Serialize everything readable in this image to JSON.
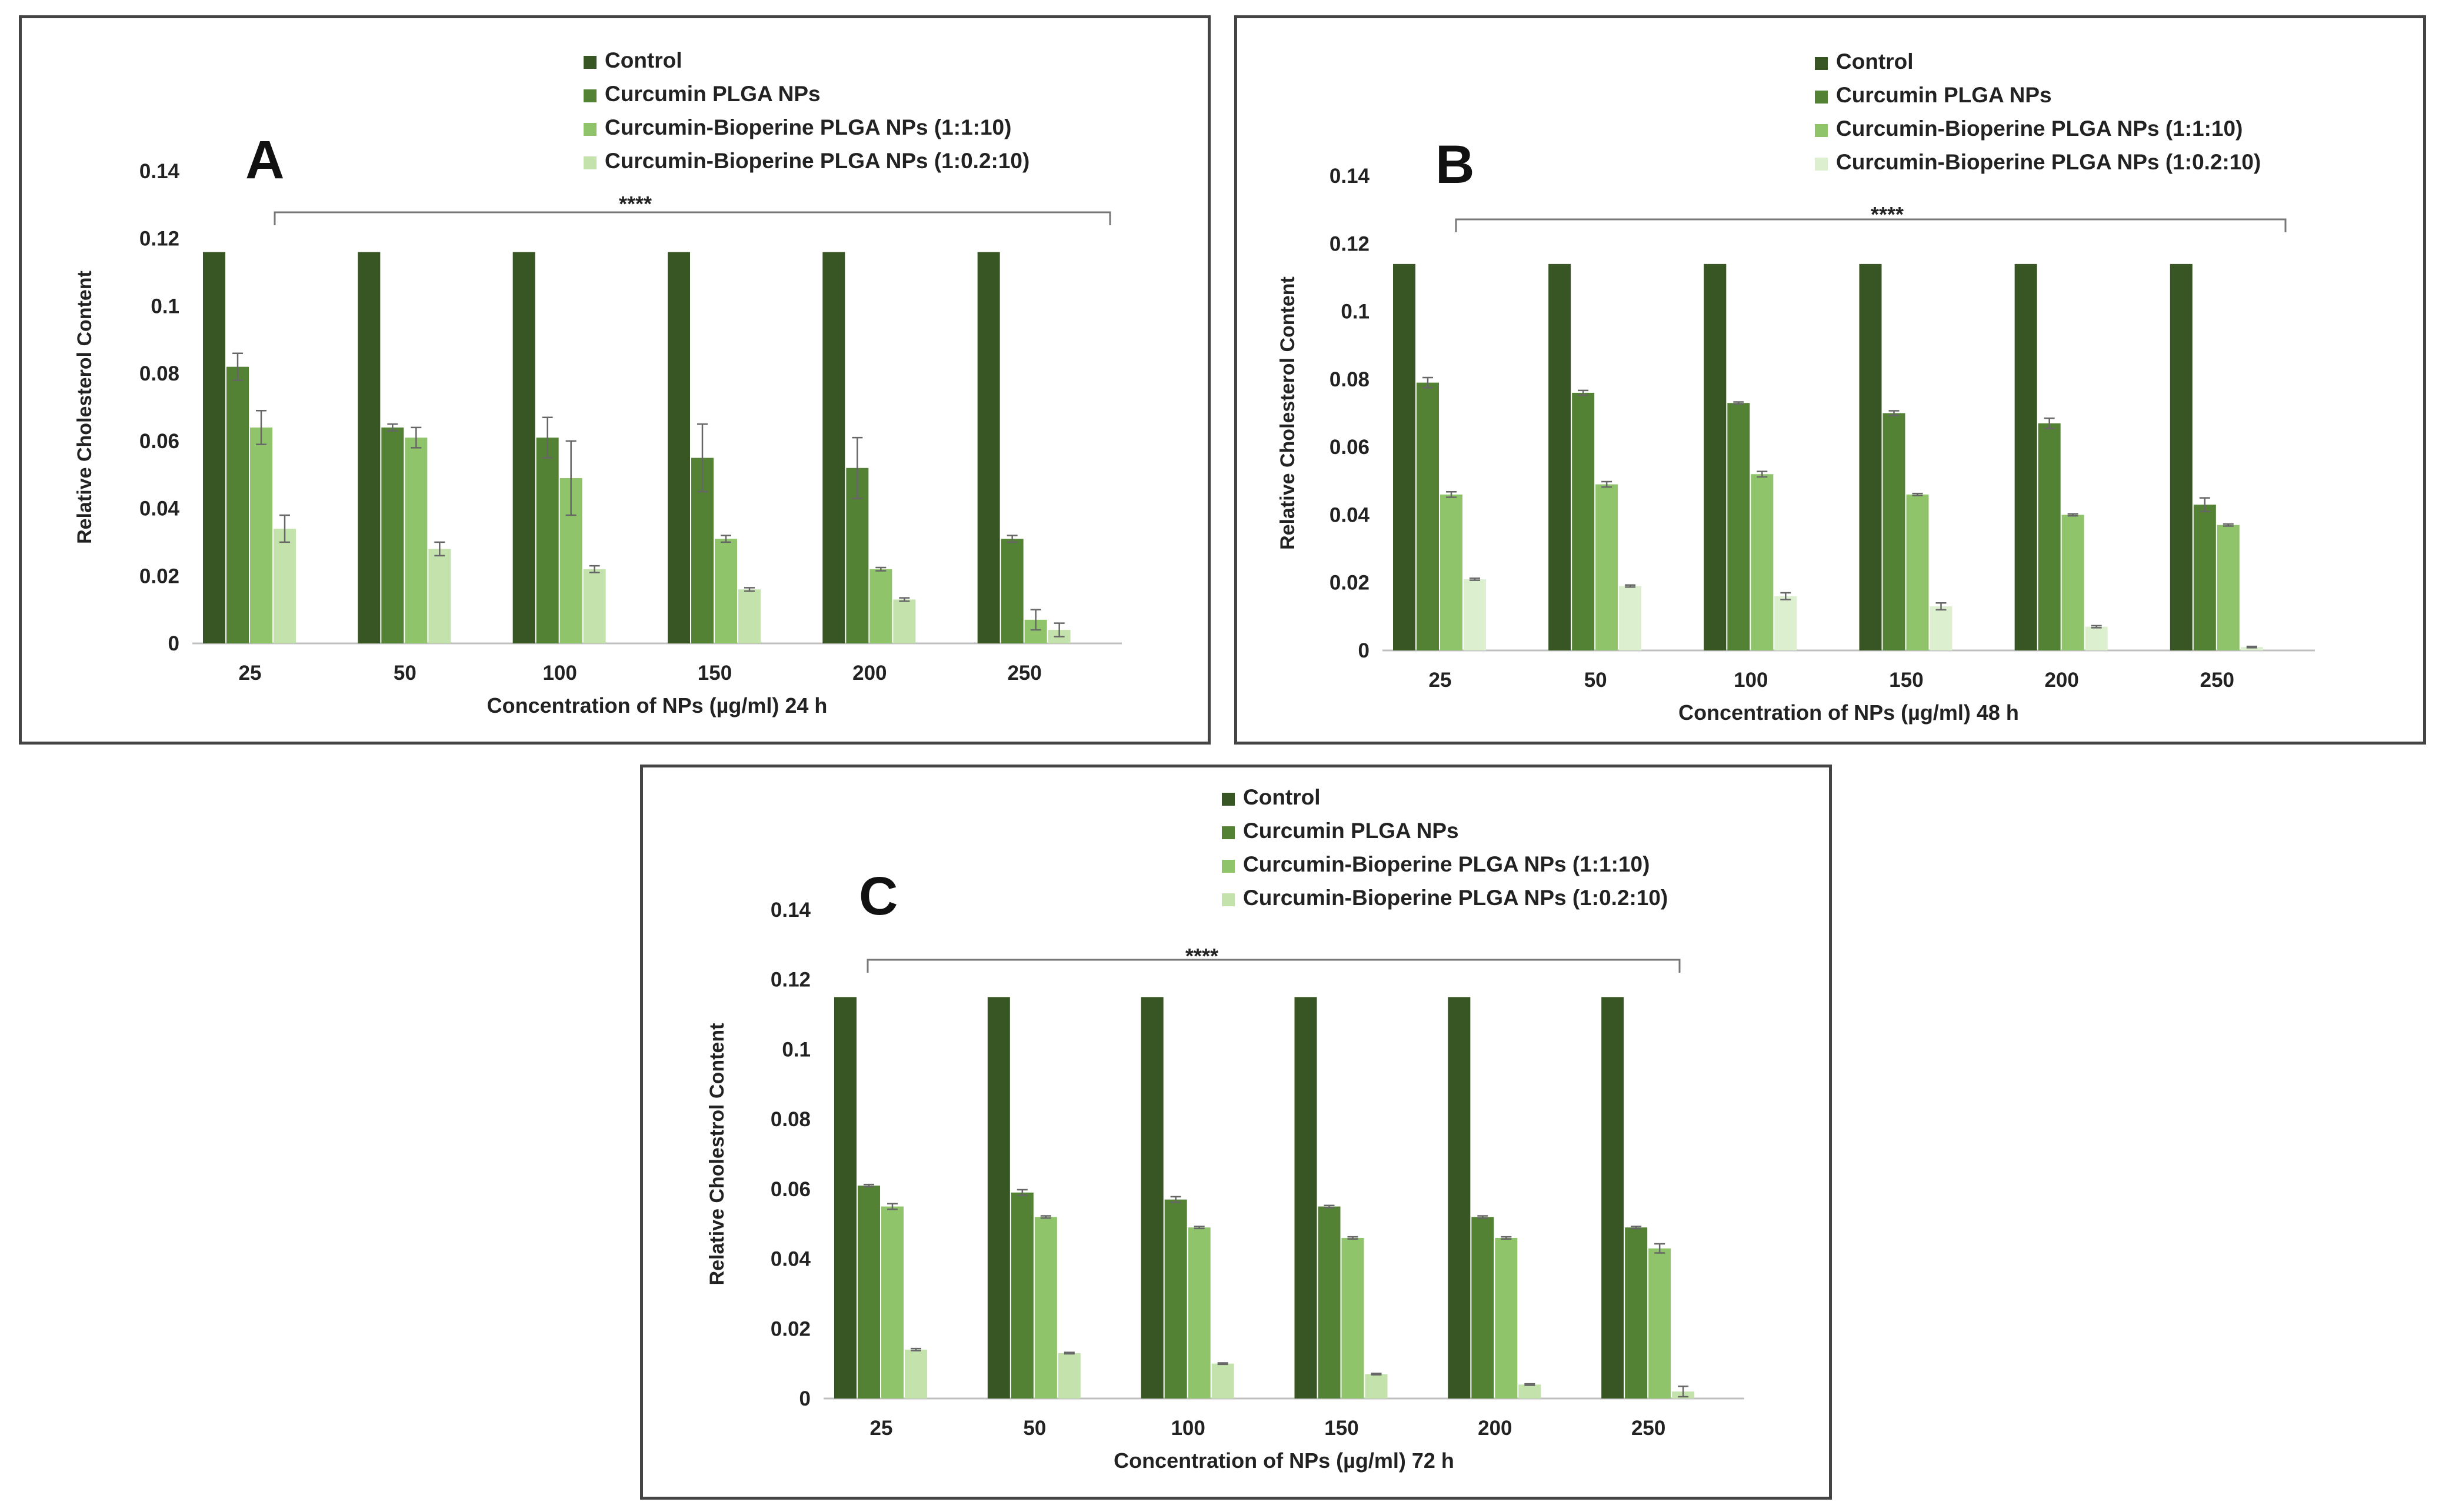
{
  "chart_data": [
    {
      "type": "bar",
      "panel_label": "A",
      "significance": "****",
      "xlabel": "Concentration of NPs (µg/ml) 24 h",
      "ylabel": "Relative Cholesterol Content",
      "ylim": [
        0,
        0.14
      ],
      "yticks": [
        "0",
        "0.02",
        "0.04",
        "0.06",
        "0.08",
        "0.1",
        "0.12",
        "0.14"
      ],
      "categories": [
        "25",
        "50",
        "100",
        "150",
        "200",
        "250"
      ],
      "legend_position": "top-center",
      "grid": false,
      "series": [
        {
          "name": "Control",
          "color": "#375623",
          "values": [
            0.116,
            0.116,
            0.116,
            0.116,
            0.116,
            0.116
          ],
          "errors": [
            0,
            0,
            0,
            0,
            0,
            0
          ]
        },
        {
          "name": "Curcumin PLGA NPs",
          "color": "#548235",
          "values": [
            0.082,
            0.064,
            0.061,
            0.055,
            0.052,
            0.031
          ],
          "errors": [
            0.004,
            0.001,
            0.006,
            0.01,
            0.009,
            0.001
          ]
        },
        {
          "name": "Curcumin-Bioperine PLGA NPs (1:1:10)",
          "color": "#8fc46b",
          "values": [
            0.064,
            0.061,
            0.049,
            0.031,
            0.022,
            0.007
          ],
          "errors": [
            0.005,
            0.003,
            0.011,
            0.001,
            0.0005,
            0.003
          ]
        },
        {
          "name": "Curcumin-Bioperine  PLGA NPs (1:0.2:10)",
          "color": "#c3e2ac",
          "values": [
            0.034,
            0.028,
            0.022,
            0.016,
            0.013,
            0.004
          ],
          "errors": [
            0.004,
            0.002,
            0.001,
            0.0005,
            0.0005,
            0.002
          ]
        }
      ]
    },
    {
      "type": "bar",
      "panel_label": "B",
      "significance": "****",
      "xlabel": "Concentration of NPs (µg/ml) 48 h",
      "ylabel": "Relative Cholesterol Content",
      "ylim": [
        0,
        0.14
      ],
      "yticks": [
        "0",
        "0.02",
        "0.04",
        "0.06",
        "0.08",
        "0.1",
        "0.12",
        "0.14"
      ],
      "categories": [
        "25",
        "50",
        "100",
        "150",
        "200",
        "250"
      ],
      "legend_position": "top-center",
      "grid": false,
      "series": [
        {
          "name": "Control",
          "color": "#375623",
          "values": [
            0.114,
            0.114,
            0.114,
            0.114,
            0.114,
            0.114
          ],
          "errors": [
            0,
            0,
            0,
            0,
            0,
            0
          ]
        },
        {
          "name": "Curcumin PLGA NPs",
          "color": "#548235",
          "values": [
            0.079,
            0.076,
            0.073,
            0.07,
            0.067,
            0.043
          ],
          "errors": [
            0.0015,
            0.0007,
            0.0003,
            0.0007,
            0.0015,
            0.002
          ]
        },
        {
          "name": "Curcumin-Bioperine PLGA NPs (1:1:10)",
          "color": "#8fc46b",
          "values": [
            0.046,
            0.049,
            0.052,
            0.046,
            0.04,
            0.037
          ],
          "errors": [
            0.0008,
            0.0008,
            0.0008,
            0.0003,
            0.0003,
            0.0003
          ]
        },
        {
          "name": "Curcumin-Bioperine  PLGA NPs (1:0.2:10)",
          "color": "#dcefcf",
          "values": [
            0.021,
            0.019,
            0.016,
            0.013,
            0.007,
            0.001
          ],
          "errors": [
            0.0003,
            0.0003,
            0.001,
            0.001,
            0.0003,
            0.0002
          ]
        }
      ]
    },
    {
      "type": "bar",
      "panel_label": "C",
      "significance": "****",
      "xlabel": "Concentration of NPs (µg/ml) 72 h",
      "ylabel": "Relative Cholestrol Content",
      "ylim": [
        0,
        0.14
      ],
      "yticks": [
        "0",
        "0.02",
        "0.04",
        "0.06",
        "0.08",
        "0.1",
        "0.12",
        "0.14"
      ],
      "categories": [
        "25",
        "50",
        "100",
        "150",
        "200",
        "250"
      ],
      "legend_position": "top-center",
      "grid": false,
      "series": [
        {
          "name": "Control",
          "color": "#375623",
          "values": [
            0.115,
            0.115,
            0.115,
            0.115,
            0.115,
            0.115
          ],
          "errors": [
            0,
            0,
            0,
            0,
            0,
            0
          ]
        },
        {
          "name": "Curcumin PLGA NPs",
          "color": "#548235",
          "values": [
            0.061,
            0.059,
            0.057,
            0.055,
            0.052,
            0.049
          ],
          "errors": [
            0.0003,
            0.0008,
            0.0008,
            0.0003,
            0.0003,
            0.0003
          ]
        },
        {
          "name": "Curcumin-Bioperine PLGA NPs (1:1:10)",
          "color": "#8fc46b",
          "values": [
            0.055,
            0.052,
            0.049,
            0.046,
            0.046,
            0.043
          ],
          "errors": [
            0.0008,
            0.0003,
            0.0003,
            0.0003,
            0.0003,
            0.0013
          ]
        },
        {
          "name": "Curcumin-Bioperine  PLGA NPs (1:0.2:10)",
          "color": "#c3e2ac",
          "values": [
            0.014,
            0.013,
            0.01,
            0.007,
            0.004,
            0.002
          ],
          "errors": [
            0.0003,
            0.0002,
            0.0002,
            0.0002,
            0.0002,
            0.0015
          ]
        }
      ]
    }
  ]
}
